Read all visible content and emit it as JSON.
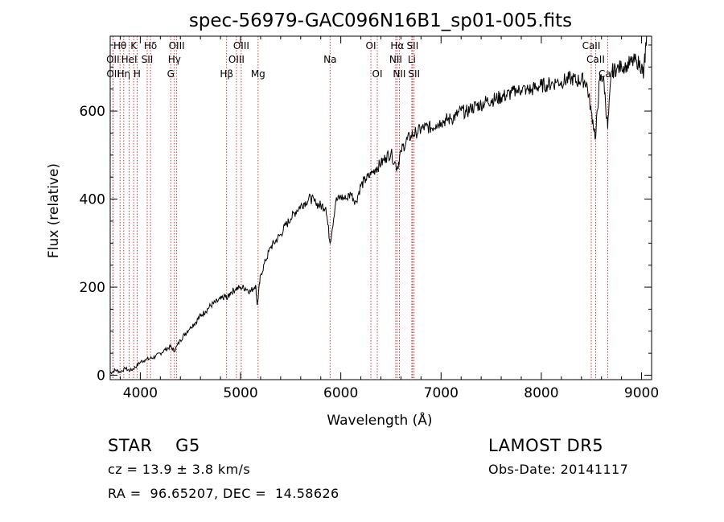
{
  "chart_data": {
    "type": "line",
    "title": "spec-56979-GAC096N16B1_sp01-005.fits",
    "xlabel": "Wavelength (Å)",
    "ylabel": "Flux (relative)",
    "xlim": [
      3700,
      9100
    ],
    "ylim": [
      -10,
      770
    ],
    "x_ticks": [
      4000,
      5000,
      6000,
      7000,
      8000,
      9000
    ],
    "y_ticks": [
      0,
      200,
      400,
      600
    ],
    "grid": false,
    "series": [
      {
        "x": [
          3700,
          3750,
          3800,
          3850,
          3900,
          3950,
          4000,
          4050,
          4100,
          4150,
          4200,
          4250,
          4300,
          4340,
          4400,
          4450,
          4500,
          4550,
          4600,
          4650,
          4700,
          4750,
          4800,
          4850,
          4862,
          4900,
          4950,
          5000,
          5050,
          5100,
          5150,
          5167,
          5200,
          5250,
          5300,
          5350,
          5400,
          5450,
          5500,
          5550,
          5600,
          5650,
          5700,
          5750,
          5800,
          5850,
          5893,
          5950,
          6000,
          6050,
          6100,
          6150,
          6200,
          6250,
          6300,
          6350,
          6400,
          6450,
          6500,
          6563,
          6600,
          6650,
          6700,
          6750,
          6800,
          6850,
          6900,
          6950,
          7000,
          7050,
          7100,
          7150,
          7200,
          7250,
          7300,
          7350,
          7400,
          7450,
          7500,
          7550,
          7600,
          7650,
          7700,
          7750,
          7800,
          7850,
          7900,
          7950,
          8000,
          8050,
          8100,
          8150,
          8200,
          8250,
          8300,
          8350,
          8400,
          8450,
          8498,
          8542,
          8580,
          8620,
          8662,
          8700,
          8750,
          8800,
          8850,
          8900,
          8950,
          9000,
          9020,
          9050
        ],
        "y": [
          5,
          12,
          8,
          15,
          10,
          18,
          30,
          35,
          38,
          42,
          50,
          58,
          65,
          55,
          80,
          95,
          110,
          120,
          135,
          145,
          158,
          165,
          172,
          180,
          172,
          188,
          195,
          200,
          198,
          190,
          205,
          160,
          228,
          260,
          290,
          305,
          320,
          340,
          355,
          372,
          385,
          395,
          402,
          390,
          385,
          382,
          300,
          395,
          405,
          400,
          412,
          395,
          430,
          445,
          455,
          470,
          480,
          495,
          505,
          470,
          510,
          530,
          545,
          552,
          558,
          565,
          562,
          570,
          575,
          580,
          582,
          590,
          600,
          598,
          605,
          612,
          615,
          622,
          625,
          628,
          632,
          636,
          640,
          645,
          648,
          650,
          648,
          655,
          658,
          660,
          662,
          665,
          668,
          670,
          675,
          668,
          672,
          665,
          600,
          540,
          670,
          680,
          560,
          690,
          695,
          700,
          705,
          710,
          715,
          700,
          680,
          770
        ]
      }
    ],
    "lines_top": [
      {
        "label": "Hθ",
        "x": 3798,
        "row": 0
      },
      {
        "label": "K",
        "x": 3934,
        "row": 0
      },
      {
        "label": "Hδ",
        "x": 4102,
        "row": 0
      },
      {
        "label": "OIII",
        "x": 4363,
        "row": 0
      },
      {
        "label": "OIII",
        "x": 5007,
        "row": 0
      },
      {
        "label": "OI",
        "x": 6300,
        "row": 0
      },
      {
        "label": "Hα",
        "x": 6563,
        "row": 0
      },
      {
        "label": "SII",
        "x": 6716,
        "row": 0
      },
      {
        "label": "CaII",
        "x": 8498,
        "row": 0
      },
      {
        "label": "OII",
        "x": 3727,
        "row": 1
      },
      {
        "label": "HeI",
        "x": 3889,
        "row": 1
      },
      {
        "label": "SII",
        "x": 4069,
        "row": 1
      },
      {
        "label": "Hγ",
        "x": 4340,
        "row": 1
      },
      {
        "label": "OIII",
        "x": 4959,
        "row": 1
      },
      {
        "label": "Na",
        "x": 5893,
        "row": 1
      },
      {
        "label": "NII",
        "x": 6548,
        "row": 1
      },
      {
        "label": "Li",
        "x": 6708,
        "row": 1
      },
      {
        "label": "CaII",
        "x": 8542,
        "row": 1
      },
      {
        "label": "OII",
        "x": 3729,
        "row": 2
      },
      {
        "label": "Hη",
        "x": 3835,
        "row": 2
      },
      {
        "label": "H",
        "x": 3968,
        "row": 2
      },
      {
        "label": "G",
        "x": 4304,
        "row": 2
      },
      {
        "label": "Hβ",
        "x": 4861,
        "row": 2
      },
      {
        "label": "Mg",
        "x": 5175,
        "row": 2
      },
      {
        "label": "OI",
        "x": 6364,
        "row": 2
      },
      {
        "label": "NII",
        "x": 6584,
        "row": 2
      },
      {
        "label": "SII",
        "x": 6731,
        "row": 2
      },
      {
        "label": "CaII",
        "x": 8662,
        "row": 2
      }
    ]
  },
  "info": {
    "class_line": "STAR    G5",
    "survey": "LAMOST DR5",
    "cz_line": "cz = 13.9 ± 3.8 km/s",
    "obs_date": "Obs-Date: 20141117",
    "coords": "RA =  96.65207, DEC =  14.58626"
  },
  "colors": {
    "spectrum": "#000000",
    "line_markers": "#cc2222",
    "axes": "#000000"
  }
}
